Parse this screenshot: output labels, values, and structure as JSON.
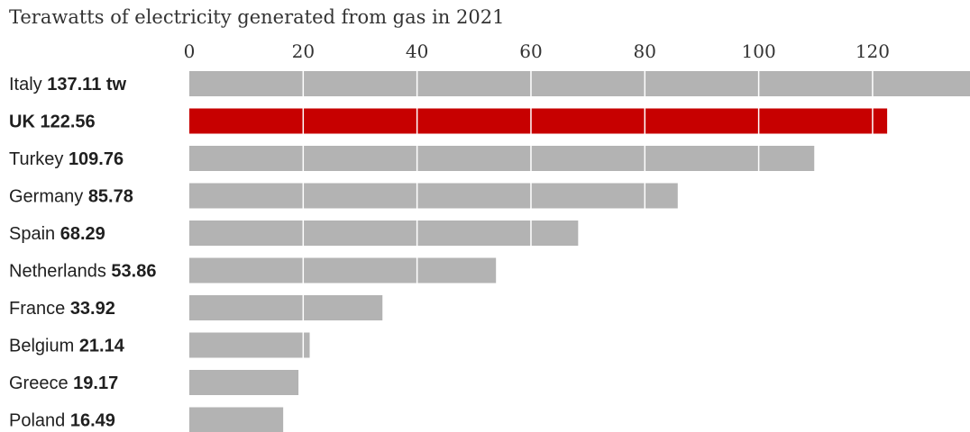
{
  "chart_data": {
    "type": "bar",
    "orientation": "horizontal",
    "title": "Terawatts of electricity generated from gas in 2021",
    "xlabel": "",
    "ylabel": "",
    "xlim": [
      0,
      137.11
    ],
    "ticks": [
      "0",
      "20",
      "40",
      "60",
      "80",
      "100",
      "120"
    ],
    "tick_values": [
      0,
      20,
      40,
      60,
      80,
      100,
      120
    ],
    "grid": true,
    "categories": [
      "Italy",
      "UK",
      "Turkey",
      "Germany",
      "Spain",
      "Netherlands",
      "France",
      "Belgium",
      "Greece",
      "Poland"
    ],
    "values": [
      137.11,
      122.56,
      109.76,
      85.78,
      68.29,
      53.86,
      33.92,
      21.14,
      19.17,
      16.49
    ],
    "value_labels": [
      "137.11 tw",
      "122.56",
      "109.76",
      "85.78",
      "68.29",
      "53.86",
      "33.92",
      "21.14",
      "19.17",
      "16.49"
    ],
    "highlight_category": "UK",
    "colors": {
      "default": "#b3b3b3",
      "highlight": "#c70000",
      "grid": "#ffffff"
    }
  }
}
